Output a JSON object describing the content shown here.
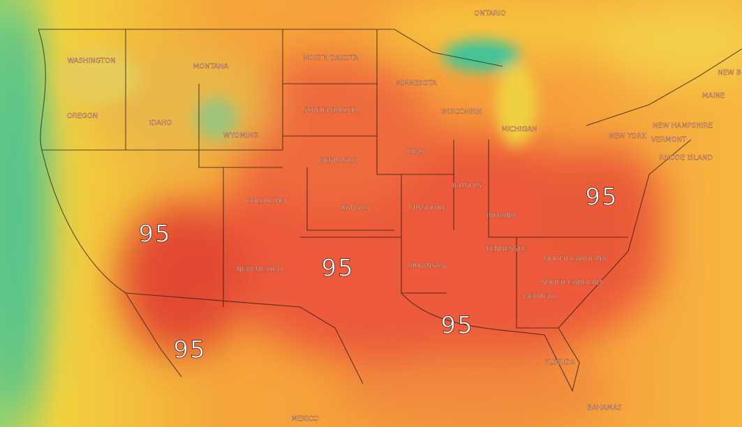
{
  "map": {
    "region_labels": [
      "ONTARIO",
      "WASHINGTON",
      "MONTANA",
      "NORTH DAKOTA",
      "MINNESOTA",
      "OREGON",
      "IDAHO",
      "WYOMING",
      "SOUTH DAKOTA",
      "WISCONSIN",
      "MICHIGAN",
      "NEW YORK",
      "NEW HAMPSHIRE",
      "VERMONT",
      "MAINE",
      "NEW B",
      "RHODE ISLAND",
      "NEBRASKA",
      "IOWA",
      "ILLINOIS",
      "COLORADO",
      "KANSAS",
      "MISSOURI",
      "INDIANA",
      "NEW MEXICO",
      "ARKANSAS",
      "TENNESSEE",
      "NORTH CAROLINA",
      "SOUTH CAROLINA",
      "GEORGIA",
      "FLORIDA",
      "BAHAMAS",
      "MEXICO"
    ],
    "contour_labels": [
      "95",
      "95",
      "95",
      "95",
      "95"
    ]
  }
}
